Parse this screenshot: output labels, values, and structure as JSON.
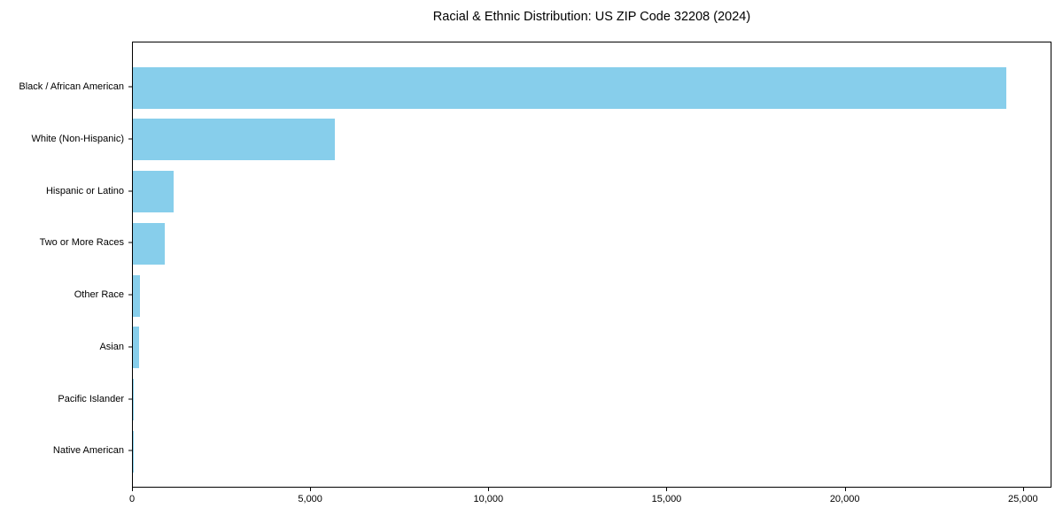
{
  "title": "Racial & Ethnic Distribution: US ZIP Code 32208 (2024)",
  "chart_data": {
    "type": "bar",
    "orientation": "horizontal",
    "title": "Racial & Ethnic Distribution: US ZIP Code 32208 (2024)",
    "xlabel": "",
    "ylabel": "",
    "categories": [
      "Black / African American",
      "White (Non-Hispanic)",
      "Hispanic or Latino",
      "Two or More Races",
      "Other Race",
      "Asian",
      "Pacific Islander",
      "Native American"
    ],
    "values": [
      24500,
      5660,
      1140,
      895,
      205,
      175,
      30,
      10
    ],
    "xlim": [
      0,
      25800
    ],
    "xticks": [
      0,
      5000,
      10000,
      15000,
      20000,
      25000
    ],
    "xtick_labels": [
      "0",
      "5,000",
      "10,000",
      "15,000",
      "20,000",
      "25,000"
    ],
    "bar_color": "#87CEEB",
    "frame_color": "#000000",
    "grid": false,
    "legend": false
  }
}
